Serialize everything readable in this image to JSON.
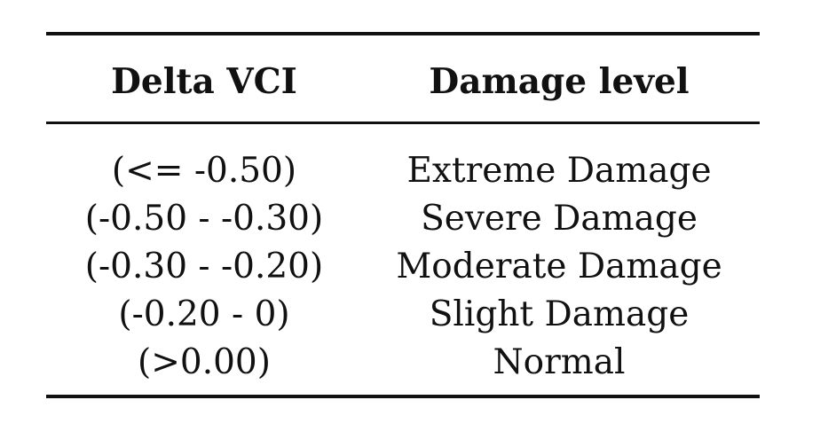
{
  "table": {
    "headers": [
      "Delta VCI",
      "Damage level"
    ],
    "rows": [
      [
        "(<= -0.50)",
        "Extreme Damage"
      ],
      [
        "(-0.50 - -0.30)",
        "Severe Damage"
      ],
      [
        "(-0.30 - -0.20)",
        "Moderate Damage"
      ],
      [
        "(-0.20 - 0)",
        "Slight Damage"
      ],
      [
        "(>0.00)",
        "Normal"
      ]
    ]
  }
}
